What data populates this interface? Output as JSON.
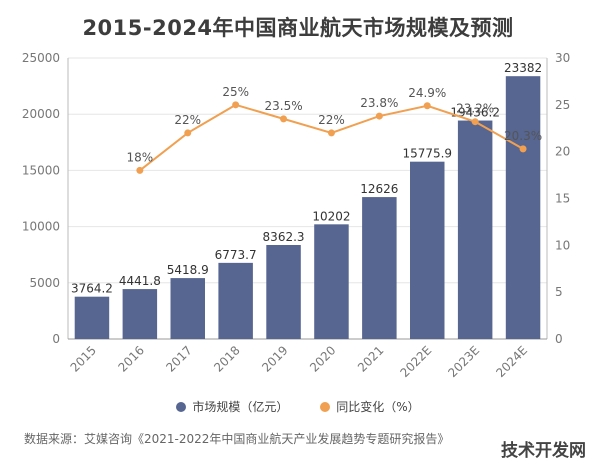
{
  "title": "2015-2024年中国商业航天市场规模及预测",
  "source": "数据来源：艾媒咨询《2021-2022年中国商业航天产业发展趋势专题研究报告》",
  "watermark": "技术开发网",
  "colors": {
    "bar": "#566691",
    "line": "#f0a050",
    "grid": "#e6e6e6",
    "axis": "#777777"
  },
  "chart_data": {
    "type": "bar",
    "categories": [
      "2015",
      "2016",
      "2017",
      "2018",
      "2019",
      "2020",
      "2021",
      "2022E",
      "2023E",
      "2024E"
    ],
    "series": [
      {
        "name": "市场规模（亿元）",
        "type": "bar",
        "axis": "left",
        "values": [
          3764.2,
          4441.8,
          5418.9,
          6773.7,
          8362.3,
          10202,
          12626,
          15775.9,
          19436.2,
          23382
        ],
        "labels": [
          "3764.2",
          "4441.8",
          "5418.9",
          "6773.7",
          "8362.3",
          "10202",
          "12626",
          "15775.9",
          "19436.2",
          "23382"
        ]
      },
      {
        "name": "同比变化（%）",
        "type": "line",
        "axis": "right",
        "values": [
          null,
          18,
          22,
          25,
          23.5,
          22,
          23.8,
          24.9,
          23.2,
          20.3
        ],
        "labels": [
          null,
          "18%",
          "22%",
          "25%",
          "23.5%",
          "22%",
          "23.8%",
          "24.9%",
          "23.2%",
          "20.3%"
        ]
      }
    ],
    "yleft": {
      "lim": [
        0,
        25000
      ],
      "ticks": [
        0,
        5000,
        10000,
        15000,
        20000,
        25000
      ]
    },
    "yright": {
      "lim": [
        0,
        30
      ],
      "ticks": [
        0,
        5,
        10,
        15,
        20,
        25,
        30
      ]
    },
    "grid": true,
    "legend_position": "bottom"
  }
}
